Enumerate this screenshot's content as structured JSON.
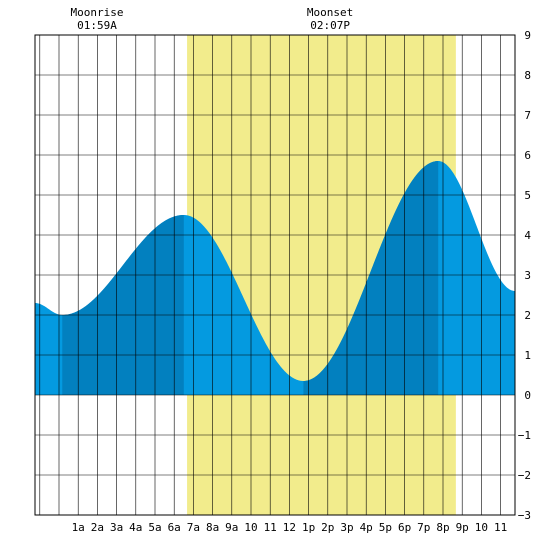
{
  "annotations": {
    "moonrise_label": "Moonrise",
    "moonrise_time": "01:59A",
    "moonset_label": "Moonset",
    "moonset_time": "02:07P"
  },
  "colors": {
    "daylight": "#f2ec8c",
    "tide_light": "#049ae0",
    "tide_dark": "#0280bf",
    "grid": "#000000",
    "background": "#ffffff"
  },
  "chart_data": {
    "type": "area",
    "title": "",
    "xlabel": "",
    "ylabel": "",
    "x_range_hours": [
      -1.25,
      23.75
    ],
    "ylim": [
      -3,
      9
    ],
    "y_ticks": [
      9,
      8,
      7,
      6,
      5,
      4,
      3,
      2,
      1,
      0,
      -1,
      -2,
      -3
    ],
    "x_tick_hours": [
      1,
      2,
      3,
      4,
      5,
      6,
      7,
      8,
      9,
      10,
      11,
      12,
      13,
      14,
      15,
      16,
      17,
      18,
      19,
      20,
      21,
      22,
      23
    ],
    "x_tick_labels": [
      "1a",
      "2a",
      "3a",
      "4a",
      "5a",
      "6a",
      "7a",
      "8a",
      "9a",
      "10",
      "11",
      "12",
      "1p",
      "2p",
      "3p",
      "4p",
      "5p",
      "6p",
      "7p",
      "8p",
      "9p",
      "10",
      "11"
    ],
    "grid": true,
    "moonrise_hour": 1.98,
    "moonset_hour": 14.12,
    "daylight_hours": [
      6.67,
      20.67
    ],
    "tide_series": {
      "x_hours": [
        -1.25,
        0.17,
        6.5,
        12.73,
        19.75,
        23.75
      ],
      "y_values": [
        2.3,
        2.0,
        4.5,
        0.35,
        5.85,
        2.6
      ]
    },
    "extrema": [
      {
        "hour": 0.17,
        "height": 2.0
      },
      {
        "hour": 6.5,
        "height": 4.5
      },
      {
        "hour": 12.73,
        "height": 0.35
      },
      {
        "hour": 19.75,
        "height": 5.85
      }
    ]
  }
}
